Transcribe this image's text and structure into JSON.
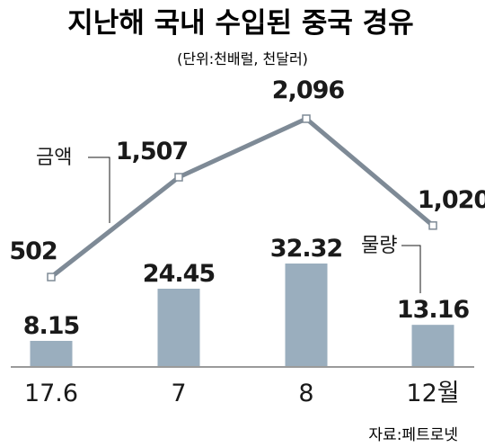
{
  "header": {
    "title": "지난해 국내 수입된 중국 경유",
    "unit": "(단위:천배럴, 천달러)"
  },
  "source": "자료:페트로넷",
  "colors": {
    "bar": "#9aaebe",
    "line": "#7e8a96",
    "marker_fill": "#ffffff",
    "marker_stroke": "#7e8a96",
    "axis": "#9a9a9a",
    "text": "#1a1a1a"
  },
  "chart_data": {
    "type": "bar",
    "categories": [
      "17.6",
      "7",
      "8",
      "12월"
    ],
    "series": [
      {
        "name": "물량",
        "type": "bar",
        "values": [
          8.15,
          24.45,
          32.32,
          13.16
        ],
        "labels": [
          "8.15",
          "24.45",
          "32.32",
          "13.16"
        ]
      },
      {
        "name": "금액",
        "type": "line",
        "values": [
          502,
          1507,
          2096,
          1020
        ],
        "labels": [
          "502",
          "1,507",
          "2,096",
          "1,020"
        ]
      }
    ],
    "title": "지난해 국내 수입된 중국 경유",
    "xlabel": "",
    "ylabel": "",
    "grid": false
  }
}
